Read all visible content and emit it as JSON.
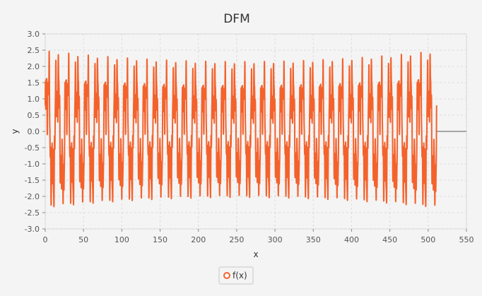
{
  "chart_data": {
    "type": "line",
    "title": "DFM",
    "xlabel": "x",
    "ylabel": "y",
    "xlim": [
      0,
      550
    ],
    "ylim": [
      -3.0,
      3.0
    ],
    "xticks": [
      0,
      50,
      100,
      150,
      200,
      250,
      300,
      350,
      400,
      450,
      500,
      550
    ],
    "yticks": [
      -3.0,
      -2.5,
      -2.0,
      -1.5,
      -1.0,
      -0.5,
      0.0,
      0.5,
      1.0,
      1.5,
      2.0,
      2.5,
      3.0
    ],
    "ytick_labels": [
      "-3.0",
      "-2.5",
      "-2.0",
      "-1.5",
      "-1.0",
      "-0.5",
      "0.0",
      "0.5",
      "1.0",
      "1.5",
      "2.0",
      "2.5",
      "3.0"
    ],
    "grid": true,
    "legend_position": "bottom-center",
    "series": [
      {
        "name": "f(x)",
        "color": "#f4622c",
        "x_end": 511,
        "flat_to": 550,
        "peak_amplitude_start": 2.62,
        "peak_amplitude_mid": 2.27,
        "peak_amplitude_end": 2.62,
        "secondary_peak": 1.55,
        "cycles": 40
      }
    ]
  }
}
